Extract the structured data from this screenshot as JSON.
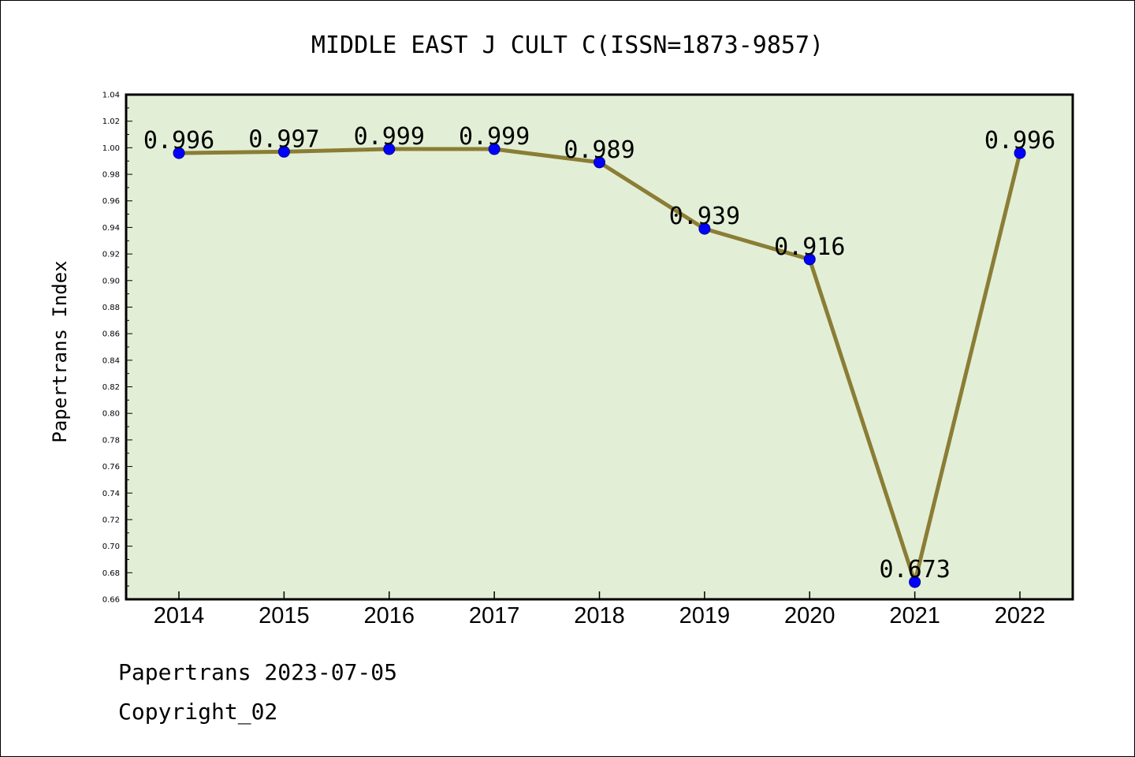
{
  "chart_data": {
    "type": "line",
    "title": "MIDDLE EAST J CULT C(ISSN=1873-9857)",
    "ylabel": "Papertrans Index",
    "xlabel": "",
    "categories": [
      "2014",
      "2015",
      "2016",
      "2017",
      "2018",
      "2019",
      "2020",
      "2021",
      "2022"
    ],
    "series": [
      {
        "values": [
          0.996,
          0.997,
          0.999,
          0.999,
          0.989,
          0.939,
          0.916,
          0.673,
          0.996
        ]
      }
    ],
    "data_labels": [
      "0.996",
      "0.997",
      "0.999",
      "0.999",
      "0.989",
      "0.939",
      "0.916",
      "0.673",
      "0.996"
    ],
    "ylim": [
      0.66,
      1.04
    ],
    "yticks": [
      "0.66",
      "0.68",
      "0.70",
      "0.72",
      "0.74",
      "0.76",
      "0.78",
      "0.80",
      "0.82",
      "0.84",
      "0.86",
      "0.88",
      "0.90",
      "0.92",
      "0.94",
      "0.96",
      "0.98",
      "1.00",
      "1.02",
      "1.04"
    ],
    "grid": false,
    "colors": {
      "plot_background": "#e2efd6",
      "line": "#8b7d35",
      "marker": "#0000ff",
      "marker_edge": "#00008b",
      "axes": "#000000"
    }
  },
  "footer": {
    "line1": "Papertrans 2023-07-05",
    "line2": "Copyright_02"
  }
}
